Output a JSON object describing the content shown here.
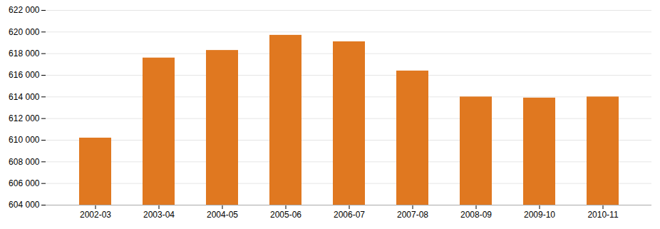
{
  "chart_data": {
    "type": "bar",
    "categories": [
      "2002-03",
      "2003-04",
      "2004-05",
      "2005-06",
      "2006-07",
      "2007-08",
      "2008-09",
      "2009-10",
      "2010-11"
    ],
    "values": [
      610200,
      617600,
      618300,
      619700,
      619100,
      616400,
      614000,
      613900,
      614000
    ],
    "color": "#E07820",
    "ylim": [
      604000,
      622000
    ],
    "yticks": [
      {
        "value": 604000,
        "label": "604 000"
      },
      {
        "value": 606000,
        "label": "606 000"
      },
      {
        "value": 608000,
        "label": "608 000"
      },
      {
        "value": 610000,
        "label": "610 000"
      },
      {
        "value": 612000,
        "label": "612 000"
      },
      {
        "value": 614000,
        "label": "614 000"
      },
      {
        "value": 616000,
        "label": "616 000"
      },
      {
        "value": 618000,
        "label": "618 000"
      },
      {
        "value": 620000,
        "label": "620 000"
      },
      {
        "value": 622000,
        "label": "622 000"
      }
    ],
    "grid": true
  }
}
